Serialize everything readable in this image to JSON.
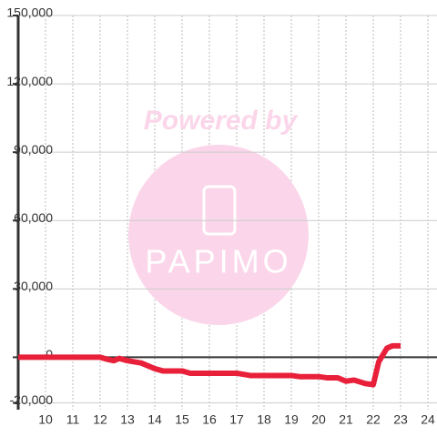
{
  "chart_data": {
    "type": "line",
    "watermark": {
      "title": "Powered by",
      "logo": "PAPIMO"
    },
    "x": [
      9,
      12,
      12.3,
      12.5,
      12.7,
      13,
      13.5,
      14,
      14.3,
      15,
      15.3,
      17,
      17.5,
      19,
      19.3,
      20,
      20.3,
      20.7,
      21,
      21.3,
      21.7,
      22,
      22.2,
      22.5,
      22.7,
      23
    ],
    "series": [
      {
        "color": "#e8203a",
        "values": [
          0,
          0,
          -1000,
          -1500,
          -500,
          -1500,
          -2500,
          -5000,
          -6000,
          -6000,
          -7000,
          -7000,
          -8000,
          -8000,
          -8500,
          -8500,
          -9000,
          -9000,
          -10500,
          -10000,
          -11500,
          -12000,
          -2000,
          4000,
          5000,
          5000
        ]
      }
    ],
    "xlim": [
      9,
      24.4
    ],
    "xticks": [
      10,
      11,
      12,
      13,
      14,
      15,
      16,
      17,
      18,
      19,
      20,
      21,
      22,
      23,
      24
    ],
    "ylim": [
      -23000,
      150000
    ],
    "yticks": [
      {
        "value": -20000,
        "label": "-20,000"
      },
      0,
      {
        "value": 30000,
        "label": "30,000"
      },
      {
        "value": 60000,
        "label": "60,000"
      },
      {
        "value": 90000,
        "label": "90,000"
      },
      {
        "value": 120000,
        "label": "120,000"
      },
      {
        "value": 150000,
        "label": "150,000"
      }
    ],
    "grid": true
  }
}
